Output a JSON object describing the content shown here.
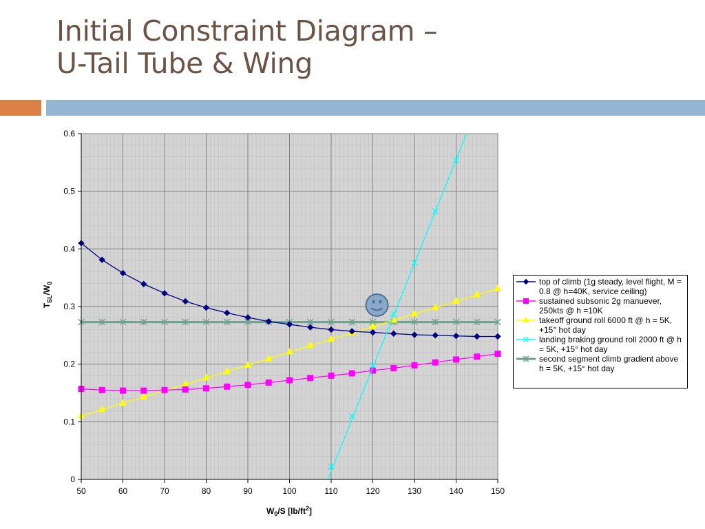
{
  "slide": {
    "title_line1": "Initial Constraint Diagram –",
    "title_line2": "U-Tail Tube & Wing"
  },
  "colors": {
    "title": "#6b5445",
    "accent_orange": "#dd8047",
    "accent_blue": "#94b6d2",
    "plot_background": "#d4d4d4",
    "gridline": "#7f7f7f"
  },
  "icons": {
    "annotation": "smiley-face-icon"
  },
  "chart_data": {
    "type": "line",
    "title": "",
    "xlabel_main": "W",
    "xlabel_sub": "0",
    "xlabel_rest": "/S [lb/ft",
    "xlabel_sup": "2",
    "xlabel_end": "]",
    "ylabel_main": "T",
    "ylabel_sub1": "SL",
    "ylabel_mid": "/W",
    "ylabel_sub2": "0",
    "xlim": [
      50,
      150
    ],
    "ylim": [
      0,
      0.6
    ],
    "xticks": [
      50,
      60,
      70,
      80,
      90,
      100,
      110,
      120,
      130,
      140,
      150
    ],
    "yticks": [
      0,
      0.1,
      0.2,
      0.3,
      0.4,
      0.5,
      0.6
    ],
    "xtick_labels": [
      "50",
      "60",
      "70",
      "80",
      "90",
      "100",
      "110",
      "120",
      "130",
      "140",
      "150"
    ],
    "ytick_labels": [
      "0",
      "0.1",
      "0.2",
      "0.3",
      "0.4",
      "0.5",
      "0.6"
    ],
    "grid": true,
    "legend_position": "right",
    "annotation": {
      "type": "smiley",
      "x": 121,
      "y": 0.3
    },
    "series": [
      {
        "name": "top of climb (1g steady, level flight, M = 0.8 @ h=40K, service ceiling)",
        "color": "#000080",
        "marker": "diamond",
        "points": [
          [
            50,
            0.41
          ],
          [
            55,
            0.381
          ],
          [
            60,
            0.358
          ],
          [
            65,
            0.339
          ],
          [
            70,
            0.323
          ],
          [
            75,
            0.309
          ],
          [
            80,
            0.298
          ],
          [
            85,
            0.289
          ],
          [
            90,
            0.281
          ],
          [
            95,
            0.274
          ],
          [
            100,
            0.269
          ],
          [
            105,
            0.264
          ],
          [
            110,
            0.26
          ],
          [
            115,
            0.257
          ],
          [
            120,
            0.255
          ],
          [
            125,
            0.253
          ],
          [
            130,
            0.251
          ],
          [
            135,
            0.25
          ],
          [
            140,
            0.249
          ],
          [
            145,
            0.248
          ],
          [
            150,
            0.248
          ]
        ]
      },
      {
        "name": "sustained subsonic 2g manuever, 250kts @ h =10K",
        "color": "#ff00ff",
        "marker": "square",
        "points": [
          [
            50,
            0.157
          ],
          [
            55,
            0.155
          ],
          [
            60,
            0.154
          ],
          [
            65,
            0.154
          ],
          [
            70,
            0.155
          ],
          [
            75,
            0.156
          ],
          [
            80,
            0.158
          ],
          [
            85,
            0.161
          ],
          [
            90,
            0.164
          ],
          [
            95,
            0.168
          ],
          [
            100,
            0.172
          ],
          [
            105,
            0.176
          ],
          [
            110,
            0.18
          ],
          [
            115,
            0.184
          ],
          [
            120,
            0.189
          ],
          [
            125,
            0.193
          ],
          [
            130,
            0.198
          ],
          [
            135,
            0.203
          ],
          [
            140,
            0.208
          ],
          [
            145,
            0.213
          ],
          [
            150,
            0.218
          ]
        ]
      },
      {
        "name": "takeoff ground roll 6000 ft @ h = 5K, +15° hot day",
        "color": "#ffff00",
        "marker": "triangle",
        "points": [
          [
            50,
            0.11
          ],
          [
            55,
            0.121
          ],
          [
            60,
            0.132
          ],
          [
            65,
            0.143
          ],
          [
            70,
            0.154
          ],
          [
            75,
            0.165
          ],
          [
            80,
            0.176
          ],
          [
            85,
            0.187
          ],
          [
            90,
            0.198
          ],
          [
            95,
            0.209
          ],
          [
            100,
            0.221
          ],
          [
            105,
            0.232
          ],
          [
            110,
            0.243
          ],
          [
            115,
            0.254
          ],
          [
            120,
            0.265
          ],
          [
            125,
            0.276
          ],
          [
            130,
            0.287
          ],
          [
            135,
            0.298
          ],
          [
            140,
            0.309
          ],
          [
            145,
            0.32
          ],
          [
            150,
            0.331
          ]
        ]
      },
      {
        "name": "landing braking ground roll 2000 ft @ h = 5K, +15° hot day",
        "color": "#00ffff",
        "marker": "x",
        "line_start": [
          109.2,
          0
        ],
        "line_end": [
          142.5,
          0.6
        ],
        "points": [
          [
            110,
            0.022
          ],
          [
            115,
            0.11
          ],
          [
            120,
            0.198
          ],
          [
            125,
            0.287
          ],
          [
            130,
            0.376
          ],
          [
            135,
            0.465
          ],
          [
            140,
            0.554
          ]
        ]
      },
      {
        "name": "second segment climb gradient above h = 5K, +15° hot day",
        "color": "#6f9f8f",
        "marker": "star",
        "points": [
          [
            50,
            0.273
          ],
          [
            55,
            0.273
          ],
          [
            60,
            0.273
          ],
          [
            65,
            0.273
          ],
          [
            70,
            0.273
          ],
          [
            75,
            0.273
          ],
          [
            80,
            0.273
          ],
          [
            85,
            0.273
          ],
          [
            90,
            0.273
          ],
          [
            95,
            0.273
          ],
          [
            100,
            0.273
          ],
          [
            105,
            0.273
          ],
          [
            110,
            0.273
          ],
          [
            115,
            0.273
          ],
          [
            120,
            0.273
          ],
          [
            125,
            0.273
          ],
          [
            130,
            0.273
          ],
          [
            135,
            0.273
          ],
          [
            140,
            0.273
          ],
          [
            145,
            0.273
          ],
          [
            150,
            0.273
          ]
        ]
      }
    ]
  }
}
